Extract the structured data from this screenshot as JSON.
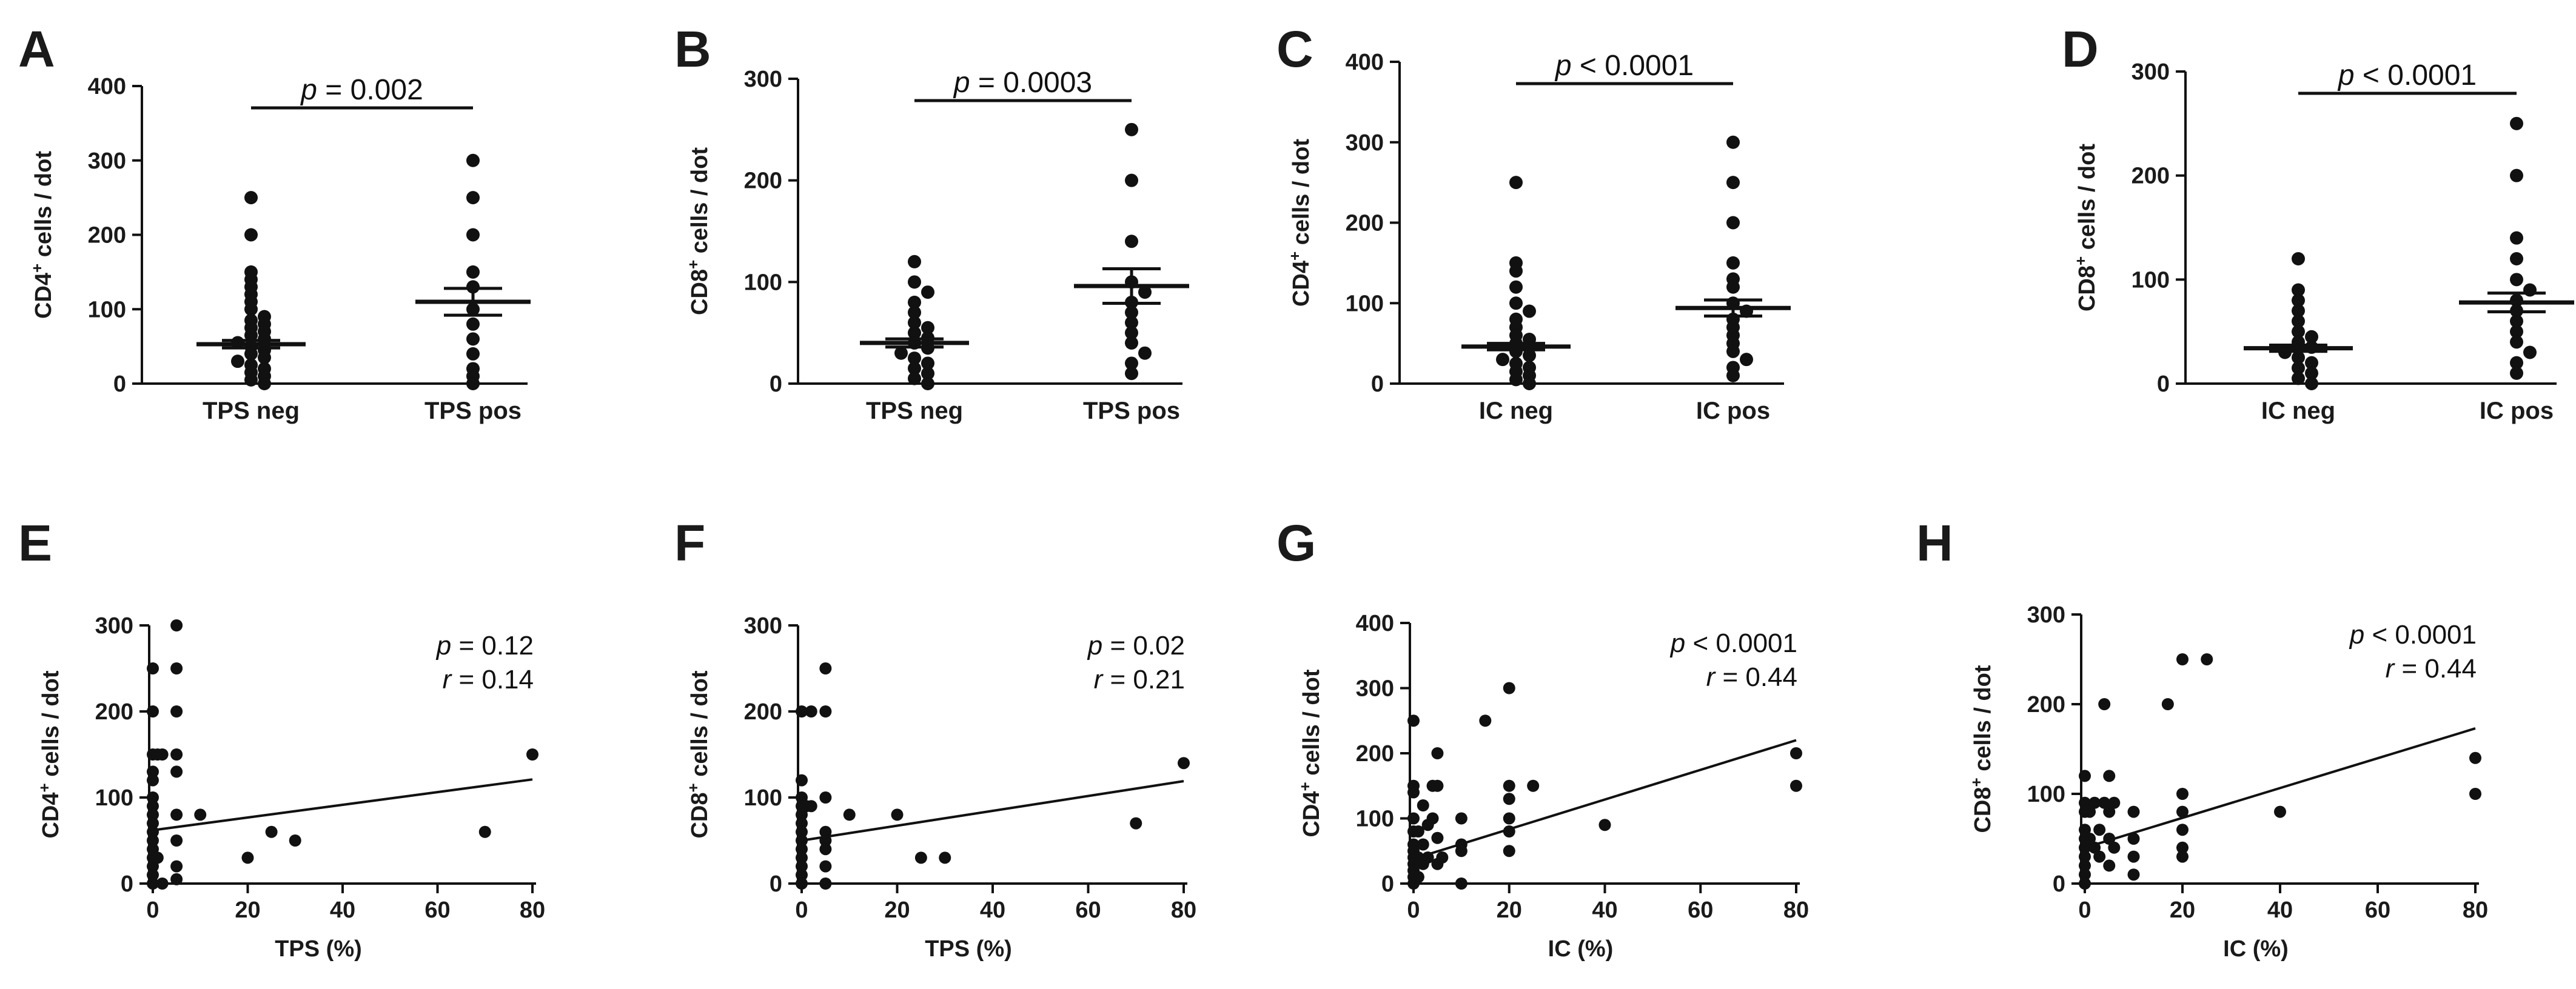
{
  "chart_data": [
    {
      "panel": "A",
      "type": "scatter",
      "ylabel_main": "CD4",
      "ylabel_sup": "+",
      "ylabel_rest": " cells / dot",
      "ylim": [
        0,
        400
      ],
      "yticks": [
        "0",
        "100",
        "200",
        "300",
        "400"
      ],
      "categories": [
        "TPS neg",
        "TPS pos"
      ],
      "sig_p": "p",
      "sig_rest": " = 0.002",
      "groups": [
        {
          "name": "TPS neg",
          "mean": 53,
          "sem_low": 48,
          "sem_high": 58,
          "values": [
            250,
            200,
            150,
            140,
            130,
            120,
            110,
            100,
            90,
            85,
            80,
            75,
            70,
            65,
            60,
            55,
            50,
            45,
            40,
            35,
            30,
            25,
            20,
            15,
            10,
            5,
            0
          ]
        },
        {
          "name": "TPS pos",
          "mean": 110,
          "sem_low": 92,
          "sem_high": 128,
          "values": [
            300,
            250,
            200,
            150,
            130,
            100,
            80,
            60,
            40,
            20,
            10,
            0
          ]
        }
      ]
    },
    {
      "panel": "B",
      "type": "scatter",
      "ylabel_main": "CD8",
      "ylabel_sup": "+",
      "ylabel_rest": " cells / dot",
      "ylim": [
        0,
        300
      ],
      "yticks": [
        "0",
        "100",
        "200",
        "300"
      ],
      "categories": [
        "TPS neg",
        "TPS pos"
      ],
      "sig_p": "p",
      "sig_rest": " = 0.0003",
      "groups": [
        {
          "name": "TPS neg",
          "mean": 40,
          "sem_low": 36,
          "sem_high": 44,
          "values": [
            120,
            100,
            90,
            80,
            70,
            60,
            55,
            50,
            45,
            40,
            35,
            30,
            25,
            20,
            15,
            10,
            5,
            0
          ]
        },
        {
          "name": "TPS pos",
          "mean": 96,
          "sem_low": 79,
          "sem_high": 113,
          "values": [
            250,
            200,
            140,
            100,
            90,
            80,
            70,
            60,
            50,
            40,
            30,
            20,
            10
          ]
        }
      ]
    },
    {
      "panel": "C",
      "type": "scatter",
      "ylabel_main": "CD4",
      "ylabel_sup": "+",
      "ylabel_rest": " cells / dot",
      "ylim": [
        0,
        400
      ],
      "yticks": [
        "0",
        "100",
        "200",
        "300",
        "400"
      ],
      "categories": [
        "IC neg",
        "IC pos"
      ],
      "sig_p": "p",
      "sig_rest": " < 0.0001",
      "groups": [
        {
          "name": "IC neg",
          "mean": 46,
          "sem_low": 42,
          "sem_high": 50,
          "values": [
            250,
            150,
            140,
            120,
            100,
            90,
            80,
            70,
            60,
            55,
            50,
            45,
            40,
            35,
            30,
            25,
            20,
            15,
            10,
            5,
            0
          ]
        },
        {
          "name": "IC pos",
          "mean": 94,
          "sem_low": 84,
          "sem_high": 104,
          "values": [
            300,
            250,
            200,
            150,
            130,
            120,
            100,
            90,
            80,
            70,
            60,
            50,
            40,
            30,
            20,
            10
          ]
        }
      ]
    },
    {
      "panel": "D",
      "type": "scatter",
      "ylabel_main": "CD8",
      "ylabel_sup": "+",
      "ylabel_rest": " cells / dot",
      "ylim": [
        0,
        300
      ],
      "yticks": [
        "0",
        "100",
        "200",
        "300"
      ],
      "categories": [
        "IC neg",
        "IC pos"
      ],
      "sig_p": "p",
      "sig_rest": " < 0.0001",
      "groups": [
        {
          "name": "IC neg",
          "mean": 34,
          "sem_low": 31,
          "sem_high": 37,
          "values": [
            120,
            90,
            80,
            70,
            60,
            50,
            45,
            40,
            35,
            30,
            25,
            20,
            15,
            10,
            5,
            0
          ]
        },
        {
          "name": "IC pos",
          "mean": 78,
          "sem_low": 69,
          "sem_high": 87,
          "values": [
            250,
            200,
            140,
            120,
            100,
            90,
            80,
            70,
            60,
            50,
            40,
            30,
            20,
            10
          ]
        }
      ]
    },
    {
      "panel": "E",
      "type": "scatter",
      "xlabel": "TPS  (%)",
      "ylabel_main": "CD4",
      "ylabel_sup": "+",
      "ylabel_rest": " cells / dot",
      "xlim": [
        0,
        80
      ],
      "xticks": [
        "0",
        "20",
        "40",
        "60",
        "80"
      ],
      "ylim": [
        0,
        300
      ],
      "yticks": [
        "0",
        "100",
        "200",
        "300"
      ],
      "stat_p": "p",
      "stat_p_rest": " = 0.12",
      "stat_r": "r",
      "stat_r_rest": " = 0.14",
      "regression": [
        [
          0,
          62
        ],
        [
          80,
          121
        ]
      ],
      "points": [
        [
          0,
          250
        ],
        [
          0,
          200
        ],
        [
          0,
          150
        ],
        [
          0,
          130
        ],
        [
          0,
          120
        ],
        [
          0,
          100
        ],
        [
          0,
          90
        ],
        [
          0,
          80
        ],
        [
          0,
          70
        ],
        [
          0,
          60
        ],
        [
          0,
          50
        ],
        [
          0,
          40
        ],
        [
          0,
          30
        ],
        [
          0,
          20
        ],
        [
          0,
          10
        ],
        [
          0,
          0
        ],
        [
          1,
          150
        ],
        [
          1,
          30
        ],
        [
          2,
          150
        ],
        [
          2,
          0
        ],
        [
          5,
          300
        ],
        [
          5,
          250
        ],
        [
          5,
          200
        ],
        [
          5,
          150
        ],
        [
          5,
          130
        ],
        [
          5,
          80
        ],
        [
          5,
          50
        ],
        [
          5,
          20
        ],
        [
          5,
          5
        ],
        [
          10,
          80
        ],
        [
          20,
          30
        ],
        [
          25,
          60
        ],
        [
          30,
          50
        ],
        [
          70,
          60
        ],
        [
          80,
          150
        ]
      ]
    },
    {
      "panel": "F",
      "type": "scatter",
      "xlabel": "TPS  (%)",
      "ylabel_main": "CD8",
      "ylabel_sup": "+",
      "ylabel_rest": " cells / dot",
      "xlim": [
        0,
        80
      ],
      "xticks": [
        "0",
        "20",
        "40",
        "60",
        "80"
      ],
      "ylim": [
        0,
        300
      ],
      "yticks": [
        "0",
        "100",
        "200",
        "300"
      ],
      "stat_p": "p",
      "stat_p_rest": " = 0.02",
      "stat_r": "r",
      "stat_r_rest": " = 0.21",
      "regression": [
        [
          0,
          50
        ],
        [
          80,
          119
        ]
      ],
      "points": [
        [
          0,
          200
        ],
        [
          0,
          120
        ],
        [
          0,
          100
        ],
        [
          0,
          90
        ],
        [
          0,
          80
        ],
        [
          0,
          70
        ],
        [
          0,
          60
        ],
        [
          0,
          50
        ],
        [
          0,
          40
        ],
        [
          0,
          30
        ],
        [
          0,
          20
        ],
        [
          0,
          10
        ],
        [
          0,
          0
        ],
        [
          1,
          90
        ],
        [
          2,
          200
        ],
        [
          2,
          90
        ],
        [
          5,
          250
        ],
        [
          5,
          200
        ],
        [
          5,
          100
        ],
        [
          5,
          60
        ],
        [
          5,
          50
        ],
        [
          5,
          40
        ],
        [
          5,
          20
        ],
        [
          5,
          0
        ],
        [
          10,
          80
        ],
        [
          20,
          80
        ],
        [
          25,
          30
        ],
        [
          30,
          30
        ],
        [
          70,
          70
        ],
        [
          80,
          140
        ]
      ]
    },
    {
      "panel": "G",
      "type": "scatter",
      "xlabel": "IC (%)",
      "ylabel_main": "CD4",
      "ylabel_sup": "+",
      "ylabel_rest": " cells / dot",
      "xlim": [
        0,
        80
      ],
      "xticks": [
        "0",
        "20",
        "40",
        "60",
        "80"
      ],
      "ylim": [
        0,
        400
      ],
      "yticks": [
        "0",
        "100",
        "200",
        "300",
        "400"
      ],
      "stat_p": "p",
      "stat_p_rest": " < 0.0001",
      "stat_r": "r",
      "stat_r_rest": " = 0.44",
      "regression": [
        [
          0,
          38
        ],
        [
          80,
          220
        ]
      ],
      "points": [
        [
          0,
          250
        ],
        [
          0,
          150
        ],
        [
          0,
          140
        ],
        [
          0,
          100
        ],
        [
          0,
          80
        ],
        [
          0,
          60
        ],
        [
          0,
          50
        ],
        [
          0,
          40
        ],
        [
          0,
          30
        ],
        [
          0,
          20
        ],
        [
          0,
          10
        ],
        [
          0,
          0
        ],
        [
          1,
          80
        ],
        [
          1,
          40
        ],
        [
          1,
          10
        ],
        [
          2,
          120
        ],
        [
          2,
          60
        ],
        [
          2,
          30
        ],
        [
          3,
          90
        ],
        [
          3,
          40
        ],
        [
          4,
          150
        ],
        [
          4,
          100
        ],
        [
          5,
          200
        ],
        [
          5,
          150
        ],
        [
          5,
          70
        ],
        [
          5,
          30
        ],
        [
          6,
          40
        ],
        [
          10,
          100
        ],
        [
          10,
          60
        ],
        [
          10,
          50
        ],
        [
          10,
          0
        ],
        [
          15,
          250
        ],
        [
          20,
          300
        ],
        [
          20,
          150
        ],
        [
          20,
          130
        ],
        [
          20,
          100
        ],
        [
          20,
          80
        ],
        [
          20,
          50
        ],
        [
          25,
          150
        ],
        [
          40,
          90
        ],
        [
          80,
          200
        ],
        [
          80,
          150
        ]
      ]
    },
    {
      "panel": "H",
      "type": "scatter",
      "xlabel": "IC (%)",
      "ylabel_main": "CD8",
      "ylabel_sup": "+",
      "ylabel_rest": " cells / dot",
      "xlim": [
        0,
        80
      ],
      "xticks": [
        "0",
        "20",
        "40",
        "60",
        "80"
      ],
      "ylim": [
        0,
        300
      ],
      "yticks": [
        "0",
        "100",
        "200",
        "300"
      ],
      "stat_p": "p",
      "stat_p_rest": " < 0.0001",
      "stat_r": "r",
      "stat_r_rest": " = 0.44",
      "regression": [
        [
          0,
          40
        ],
        [
          80,
          173
        ]
      ],
      "points": [
        [
          0,
          120
        ],
        [
          0,
          90
        ],
        [
          0,
          80
        ],
        [
          0,
          60
        ],
        [
          0,
          50
        ],
        [
          0,
          40
        ],
        [
          0,
          30
        ],
        [
          0,
          20
        ],
        [
          0,
          10
        ],
        [
          0,
          0
        ],
        [
          1,
          80
        ],
        [
          1,
          50
        ],
        [
          2,
          90
        ],
        [
          2,
          40
        ],
        [
          3,
          60
        ],
        [
          3,
          30
        ],
        [
          4,
          200
        ],
        [
          4,
          90
        ],
        [
          5,
          120
        ],
        [
          5,
          80
        ],
        [
          5,
          50
        ],
        [
          5,
          20
        ],
        [
          6,
          90
        ],
        [
          6,
          40
        ],
        [
          10,
          80
        ],
        [
          10,
          50
        ],
        [
          10,
          30
        ],
        [
          10,
          10
        ],
        [
          17,
          200
        ],
        [
          20,
          250
        ],
        [
          20,
          100
        ],
        [
          20,
          80
        ],
        [
          20,
          60
        ],
        [
          20,
          40
        ],
        [
          20,
          30
        ],
        [
          25,
          250
        ],
        [
          40,
          80
        ],
        [
          80,
          140
        ],
        [
          80,
          100
        ]
      ]
    }
  ]
}
